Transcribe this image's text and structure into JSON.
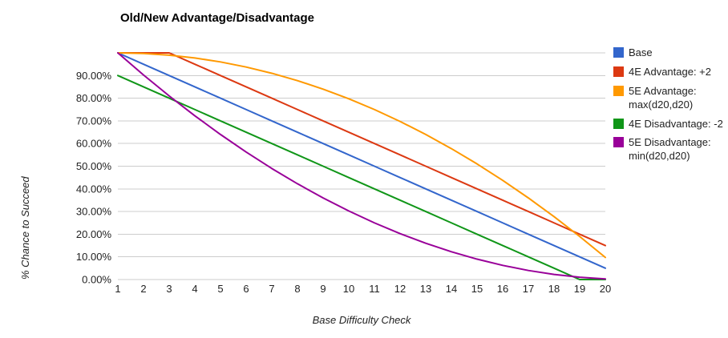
{
  "chart_data": {
    "type": "line",
    "title": "Old/New Advantage/Disadvantage",
    "xlabel": "Base Difficulty Check",
    "ylabel": "% Chance to Succeed",
    "x": [
      1,
      2,
      3,
      4,
      5,
      6,
      7,
      8,
      9,
      10,
      11,
      12,
      13,
      14,
      15,
      16,
      17,
      18,
      19,
      20
    ],
    "ylim": [
      0,
      100
    ],
    "y_tick_labels": [
      "0.00%",
      "10.00%",
      "20.00%",
      "30.00%",
      "40.00%",
      "50.00%",
      "60.00%",
      "70.00%",
      "80.00%",
      "90.00%"
    ],
    "grid": "horizontal",
    "gridline_color": "#cccccc",
    "legend_position": "right",
    "series": [
      {
        "name": "Base",
        "color": "#3366cc",
        "values": [
          100,
          95,
          90,
          85,
          80,
          75,
          70,
          65,
          60,
          55,
          50,
          45,
          40,
          35,
          30,
          25,
          20,
          15,
          10,
          5
        ]
      },
      {
        "name": "4E Advantage: +2",
        "color": "#dc3912",
        "values": [
          100,
          100,
          100,
          95,
          90,
          85,
          80,
          75,
          70,
          65,
          60,
          55,
          50,
          45,
          40,
          35,
          30,
          25,
          20,
          15
        ]
      },
      {
        "name": "5E Advantage: max(d20,d20)",
        "color": "#ff9900",
        "values": [
          100,
          99.75,
          99,
          97.75,
          96,
          93.75,
          91,
          87.75,
          84,
          79.75,
          75,
          69.75,
          64,
          57.75,
          51,
          43.75,
          36,
          27.75,
          19,
          9.75
        ]
      },
      {
        "name": "4E Disadvantage: -2",
        "color": "#109618",
        "values": [
          90,
          85,
          80,
          75,
          70,
          65,
          60,
          55,
          50,
          45,
          40,
          35,
          30,
          25,
          20,
          15,
          10,
          5,
          0,
          0
        ]
      },
      {
        "name": "5E Disadvantage: min(d20,d20)",
        "color": "#990099",
        "values": [
          100,
          90.25,
          81,
          72.25,
          64,
          56.25,
          49,
          42.25,
          36,
          30.25,
          25,
          20.25,
          16,
          12.25,
          9,
          6.25,
          4,
          2.25,
          1,
          0.25
        ]
      }
    ]
  }
}
